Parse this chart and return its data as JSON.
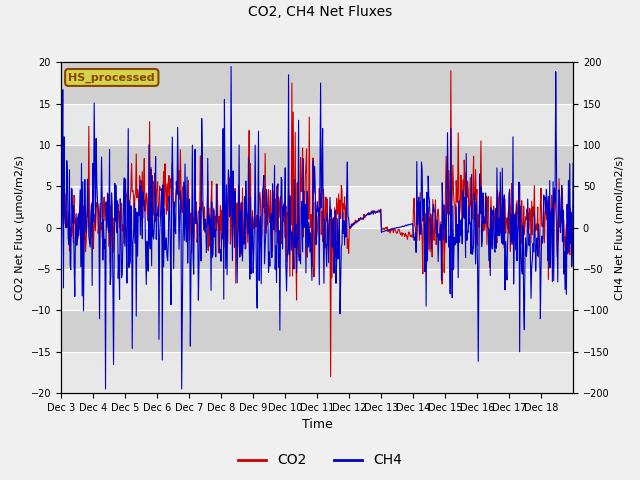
{
  "title": "CO2, CH4 Net Fluxes",
  "xlabel": "Time",
  "ylabel_left": "CO2 Net Flux (μmol/m2/s)",
  "ylabel_right": "CH4 Net Flux (nmol/m2/s)",
  "ylim_left": [
    -20,
    20
  ],
  "ylim_right": [
    -200,
    200
  ],
  "yticks_left": [
    -20,
    -15,
    -10,
    -5,
    0,
    5,
    10,
    15,
    20
  ],
  "yticks_right": [
    -200,
    -150,
    -100,
    -50,
    0,
    50,
    100,
    150,
    200
  ],
  "co2_color": "#cc0000",
  "ch4_color": "#0000cc",
  "plot_bg_color": "#d8d8d8",
  "fig_bg_color": "#f0f0f0",
  "annotation_text": "HS_processed",
  "annotation_bg": "#d4d44a",
  "annotation_border": "#884400",
  "legend_co2": "CO2",
  "legend_ch4": "CH4",
  "x_tick_labels": [
    "Dec 3",
    "Dec 4",
    "Dec 5",
    "Dec 6",
    "Dec 7",
    "Dec 8",
    "Dec 9",
    "Dec 10",
    "Dec 11",
    "Dec 12",
    "Dec 13",
    "Dec 14",
    "Dec 15",
    "Dec 16",
    "Dec 17",
    "Dec 18"
  ],
  "n_points_per_day": 48,
  "seed": 42
}
